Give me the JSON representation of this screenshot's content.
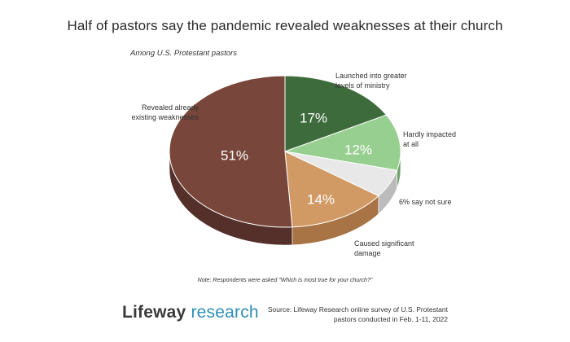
{
  "chart_data": {
    "type": "pie",
    "title": "Half of pastors say the pandemic revealed weaknesses at their church",
    "subtitle": "Among U.S. Protestant pastors",
    "slices": [
      {
        "label": "Launched into greater levels of ministry",
        "label_lines": [
          "Launched into greater",
          "levels of ministry"
        ],
        "value": 17,
        "pct_text": "17%",
        "color": "#3e6b3c",
        "side": "#2c4e2b"
      },
      {
        "label": "Hardly impacted at all",
        "label_lines": [
          "Hardly impacted",
          "at all"
        ],
        "value": 12,
        "pct_text": "12%",
        "color": "#97cf90",
        "side": "#6fa468"
      },
      {
        "label": "6% say not sure",
        "label_lines": [
          "6% say not sure"
        ],
        "value": 6,
        "pct_text": "",
        "color": "#e8e8e8",
        "side": "#bcbcbc"
      },
      {
        "label": "Caused significant damage",
        "label_lines": [
          "Caused significant",
          "damage"
        ],
        "value": 14,
        "pct_text": "14%",
        "color": "#d19a64",
        "side": "#a87445"
      },
      {
        "label": "Revealed already existing weaknesses",
        "label_lines": [
          "Revealed already",
          "existing weaknesses"
        ],
        "value": 51,
        "pct_text": "51%",
        "color": "#78463a",
        "side": "#55302a"
      }
    ],
    "note": "Note: Respondents were asked \"Which is most true for your church?\"",
    "source_line1": "Source: Lifeway Research online survey of U.S. Protestant",
    "source_line2": "pastors conducted in Feb. 1-11, 2022"
  },
  "logo": {
    "part1": "Lifeway",
    "part2": " research"
  }
}
